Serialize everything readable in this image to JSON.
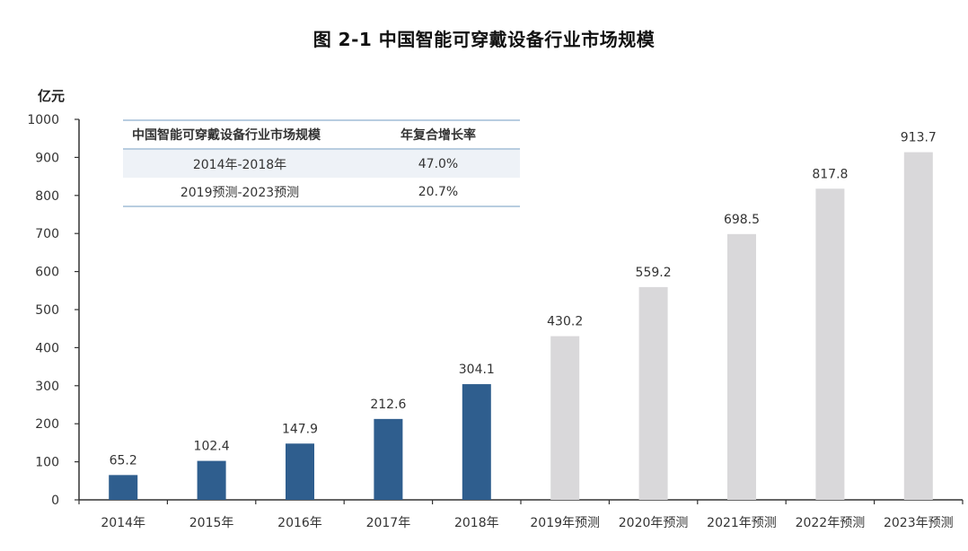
{
  "chart_data": {
    "type": "bar",
    "title": "图  2-1  中国智能可穿戴设备行业市场规模",
    "ylabel": "亿元",
    "xlabel": "",
    "ylim": [
      0,
      1000
    ],
    "yticks": [
      0,
      100,
      200,
      300,
      400,
      500,
      600,
      700,
      800,
      900,
      1000
    ],
    "grid": false,
    "categories": [
      "2014年",
      "2015年",
      "2016年",
      "2017年",
      "2018年",
      "2019年预测",
      "2020年预测",
      "2021年预测",
      "2022年预测",
      "2023年预测"
    ],
    "values": [
      65.2,
      102.4,
      147.9,
      212.6,
      304.1,
      430.2,
      559.2,
      698.5,
      817.8,
      913.7
    ],
    "data_labels": [
      "65.2",
      "102.4",
      "147.9",
      "212.6",
      "304.1",
      "430.2",
      "559.2",
      "698.5",
      "817.8",
      "913.7"
    ],
    "series_kind": [
      "actual",
      "actual",
      "actual",
      "actual",
      "actual",
      "forecast",
      "forecast",
      "forecast",
      "forecast",
      "forecast"
    ],
    "colors": {
      "actual": "#2f5e8e",
      "forecast": "#d9d8da",
      "axis": "#333333",
      "text": "#333333"
    }
  },
  "table": {
    "header": [
      "中国智能可穿戴设备行业市场规模",
      "年复合增长率"
    ],
    "rows": [
      [
        "2014年-2018年",
        "47.0%"
      ],
      [
        "2019预测-2023预测",
        "20.7%"
      ]
    ]
  }
}
